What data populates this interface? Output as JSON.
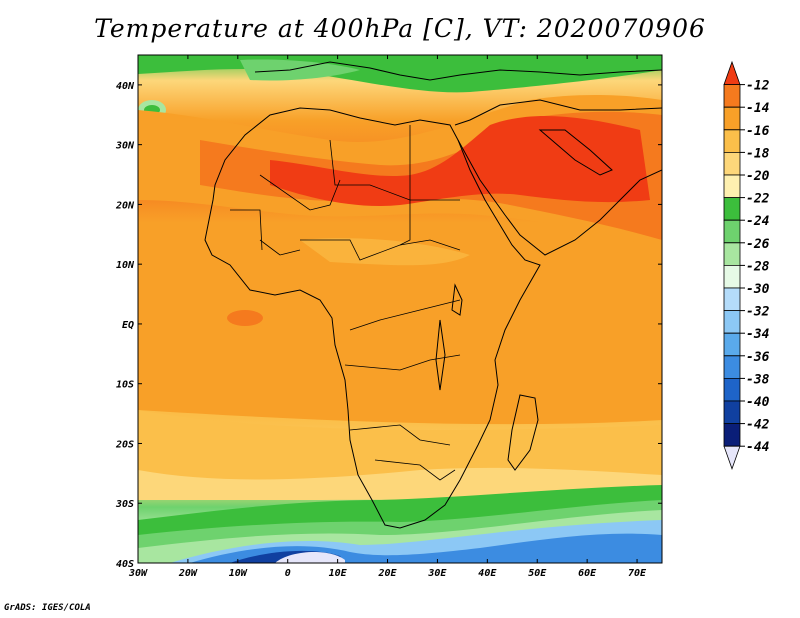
{
  "title": "Temperature at 400hPa [C], VT: 2020070906",
  "credit": "GrADS: IGES/COLA",
  "map": {
    "projection": "latlon",
    "lon_range": [
      -30,
      75
    ],
    "lat_range": [
      -40,
      45
    ],
    "lon_ticks": [
      "30W",
      "20W",
      "10W",
      "0",
      "10E",
      "20E",
      "30E",
      "40E",
      "50E",
      "60E",
      "70E"
    ],
    "lon_tick_values": [
      -30,
      -20,
      -10,
      0,
      10,
      20,
      30,
      40,
      50,
      60,
      70
    ],
    "lat_ticks": [
      "40N",
      "30N",
      "20N",
      "10N",
      "EQ",
      "10S",
      "20S",
      "30S",
      "40S"
    ],
    "lat_tick_values": [
      40,
      30,
      20,
      10,
      0,
      -10,
      -20,
      -30,
      -40
    ]
  },
  "colorbar": {
    "labels": [
      "-12",
      "-14",
      "-16",
      "-18",
      "-20",
      "-22",
      "-24",
      "-26",
      "-28",
      "-30",
      "-32",
      "-34",
      "-36",
      "-38",
      "-40",
      "-42",
      "-44"
    ],
    "colors": [
      "#f03c14",
      "#f57a1e",
      "#f8a028",
      "#fbbf4a",
      "#fdd77a",
      "#fef0b0",
      "#3cbe3c",
      "#6ed26e",
      "#a8e6a0",
      "#e6fae6",
      "#b4dcfa",
      "#8cc8f5",
      "#5aaaeb",
      "#3c8ce1",
      "#1e64c8",
      "#1040a0",
      "#0a1e78",
      "#e6e6fa"
    ]
  }
}
